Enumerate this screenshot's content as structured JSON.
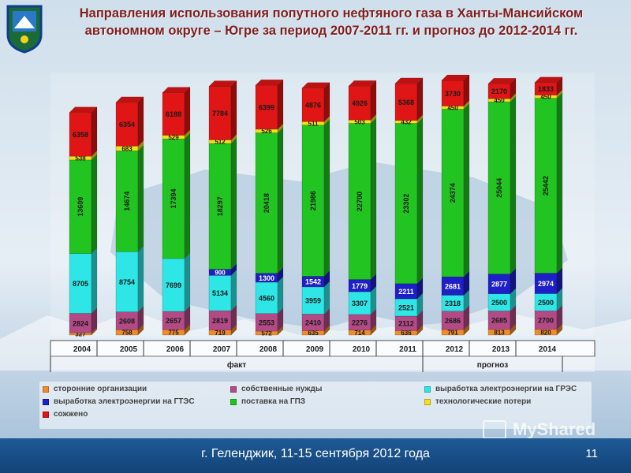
{
  "title": "Направления использования попутного нефтяного газа в Ханты-Мансийском автономном округе – Югре за период 2007-2011 гг. и прогноз до 2012-2014 гг.",
  "footer": {
    "text": "г. Геленджик, 11-15 сентября 2012 года",
    "page": "11"
  },
  "watermark": "MyShared",
  "colors": {
    "accent_title": "#7f1f1f",
    "footer_bar": "#1f5a95"
  },
  "chart_data": {
    "type": "bar",
    "stacked": true,
    "categories": [
      "2004",
      "2005",
      "2006",
      "2007",
      "2008",
      "2009",
      "2010",
      "2011",
      "2012",
      "2013",
      "2014"
    ],
    "groups": [
      {
        "label": "факт",
        "categories": [
          "2004",
          "2005",
          "2006",
          "2007",
          "2008",
          "2009",
          "2010",
          "2011"
        ]
      },
      {
        "label": "прогноз",
        "categories": [
          "2012",
          "2013",
          "2014"
        ]
      }
    ],
    "series": [
      {
        "name": "сторонние организации",
        "color": "#f28c28",
        "values": [
          327,
          758,
          775,
          719,
          572,
          635,
          714,
          636,
          791,
          813,
          820
        ]
      },
      {
        "name": "собственные нужды",
        "color": "#b24a86",
        "values": [
          2824,
          2608,
          2657,
          2819,
          2553,
          2410,
          2276,
          2112,
          2686,
          2685,
          2700
        ]
      },
      {
        "name": "выработка электроэнергии на ГРЭС",
        "color": "#2fe6e6",
        "values": [
          8705,
          8754,
          7699,
          5134,
          4560,
          3959,
          3307,
          2521,
          2318,
          2500,
          2500
        ]
      },
      {
        "name": "выработка электроэнергии на ГТЭС",
        "color": "#1f1fc8",
        "values": [
          0,
          0,
          0,
          900,
          1300,
          1542,
          1779,
          2211,
          2681,
          2877,
          2974
        ]
      },
      {
        "name": "поставка на ГПЗ",
        "color": "#22c422",
        "values": [
          13609,
          14674,
          17394,
          18297,
          20418,
          21986,
          22700,
          23302,
          24374,
          25044,
          25442
        ]
      },
      {
        "name": "технологические потери",
        "color": "#f2e21a",
        "values": [
          538,
          683,
          529,
          512,
          526,
          511,
          503,
          432,
          450,
          450,
          450
        ]
      },
      {
        "name": "сожжено",
        "color": "#e01515",
        "values": [
          6358,
          6354,
          6188,
          7784,
          6399,
          4876,
          4926,
          5368,
          3730,
          2170,
          1833
        ]
      }
    ]
  }
}
